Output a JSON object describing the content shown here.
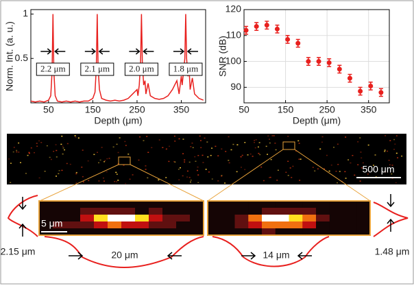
{
  "chart_data": [
    {
      "type": "line",
      "ylabel": "Norm. Int. (a. u.)",
      "xlabel": "Depth (μm)",
      "x": [
        10,
        20,
        30,
        40,
        50,
        55,
        58,
        60,
        62,
        65,
        70,
        80,
        90,
        100,
        110,
        120,
        130,
        140,
        150,
        155,
        158,
        160,
        162,
        165,
        170,
        180,
        190,
        200,
        210,
        220,
        230,
        240,
        250,
        252,
        255,
        258,
        260,
        262,
        265,
        268,
        270,
        275,
        280,
        290,
        300,
        310,
        320,
        330,
        340,
        345,
        350,
        352,
        355,
        358,
        360,
        362,
        365,
        368,
        370,
        375,
        380,
        390,
        400
      ],
      "values": [
        0.02,
        0.01,
        0.02,
        0.01,
        0.03,
        0.08,
        0.35,
        1,
        0.35,
        0.08,
        0.02,
        0.01,
        0.02,
        0.01,
        0.02,
        0.01,
        0.02,
        0.02,
        0.05,
        0.12,
        0.4,
        1,
        0.4,
        0.15,
        0.05,
        0.03,
        0.02,
        0.03,
        0.02,
        0.03,
        0.05,
        0.1,
        0.15,
        0.08,
        0.2,
        0.45,
        1,
        0.45,
        0.2,
        0.25,
        0.1,
        0.22,
        0.08,
        0.05,
        0.04,
        0.05,
        0.08,
        0.15,
        0.25,
        0.1,
        0.3,
        0.2,
        0.35,
        0.5,
        1,
        0.5,
        0.3,
        0.35,
        0.15,
        0.28,
        0.1,
        0.05,
        0.03
      ],
      "color": "#e8201e",
      "xlim": [
        10,
        405
      ],
      "ylim": [
        0,
        1.05
      ],
      "xticks": [
        50,
        150,
        250,
        350
      ],
      "yticks": [
        0.5,
        1
      ],
      "annotations": [
        "2.2 μm",
        "2.1 μm",
        "2.0 μm",
        "1.8 μm"
      ]
    },
    {
      "type": "scatter",
      "ylabel": "SNR (dB)",
      "xlabel": "Depth (μm)",
      "x": [
        55,
        80,
        105,
        130,
        155,
        180,
        205,
        230,
        255,
        280,
        305,
        330,
        355,
        380
      ],
      "values": [
        112,
        113.5,
        114,
        112.5,
        108.5,
        107,
        100,
        100,
        99.5,
        97,
        93.5,
        88.5,
        90.5,
        88
      ],
      "errors": [
        1.5,
        1.5,
        1.5,
        1.5,
        1.5,
        1.5,
        1.5,
        1.5,
        1.5,
        1.5,
        1.5,
        1.5,
        1.5,
        1.5
      ],
      "color": "#e8201e",
      "xlim": [
        50,
        400
      ],
      "ylim": [
        84,
        120
      ],
      "xticks": [
        50,
        150,
        250,
        350
      ],
      "yticks": [
        90,
        100,
        110,
        120
      ],
      "grid": true
    }
  ],
  "image": {
    "scale_bar": "500 μm",
    "inset_scale": "5 μm",
    "widths": [
      "20 μm",
      "14 μm"
    ],
    "heights": [
      "2.15 μm",
      "1.48 μm"
    ]
  }
}
